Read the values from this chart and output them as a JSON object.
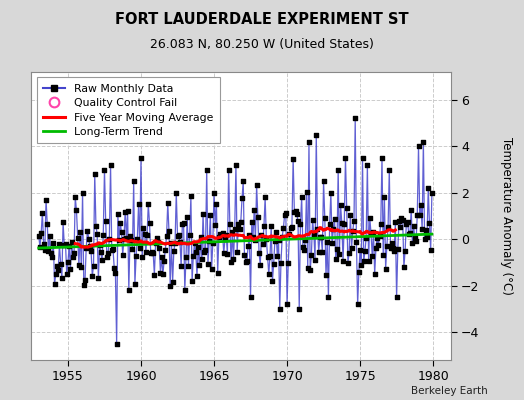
{
  "title": "FORT LAUDERDALE EXPERIMENT ST",
  "subtitle": "26.083 N, 80.250 W (United States)",
  "ylabel": "Temperature Anomaly (°C)",
  "credit": "Berkeley Earth",
  "xlim": [
    1952.5,
    1981.2
  ],
  "ylim": [
    -5.2,
    7.2
  ],
  "yticks": [
    -4,
    -2,
    0,
    2,
    4,
    6
  ],
  "xticks": [
    1955,
    1960,
    1965,
    1970,
    1975,
    1980
  ],
  "bg_color": "#d8d8d8",
  "plot_bg_color": "#ffffff",
  "raw_line_color": "#4444cc",
  "raw_dot_color": "#000000",
  "moving_avg_color": "#ff0000",
  "trend_color": "#00bb00",
  "seed": 42,
  "n_years": 28,
  "start_year": 1952,
  "months_per_year": 12
}
